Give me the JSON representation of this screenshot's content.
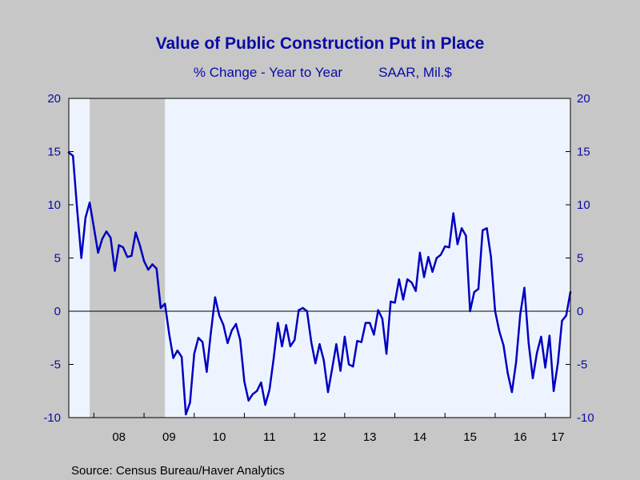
{
  "chart": {
    "title": "Value of Public Construction Put in Place",
    "subtitle_left": "% Change - Year to Year",
    "subtitle_right": "SAAR, Mil.$",
    "source": "Source:  Census Bureau/Haver Analytics"
  },
  "colors": {
    "background": "#C7C7C7",
    "plot_background": "#EEF4FF",
    "recession_shade": "#C8C8C8",
    "line": "#0000C0",
    "text_blue": "#0A0AA6"
  },
  "chart_data": {
    "type": "line",
    "title": "Value of Public Construction Put in Place",
    "subtitle": "% Change - Year to Year    SAAR, Mil.$",
    "xlabel": "",
    "ylabel": "",
    "ylim": [
      -10,
      20
    ],
    "y_ticks": [
      20,
      15,
      10,
      5,
      0,
      -5,
      -10
    ],
    "y_tick_labels": [
      "20",
      "15",
      "10",
      "5",
      "0",
      "-5",
      "-10"
    ],
    "x_tick_labels": [
      "08",
      "09",
      "10",
      "11",
      "12",
      "13",
      "14",
      "15",
      "16",
      "17"
    ],
    "x_range": [
      "2007-07",
      "2017-07"
    ],
    "recession": {
      "start": "2007-12",
      "end": "2009-06"
    },
    "axes": "left and right mirrored",
    "grid": false,
    "zero_line": true,
    "series": [
      {
        "x": [
          "2007-07",
          "2007-08",
          "2007-09",
          "2007-10",
          "2007-11",
          "2007-12",
          "2008-01",
          "2008-02",
          "2008-03",
          "2008-04",
          "2008-05",
          "2008-06",
          "2008-07",
          "2008-08",
          "2008-09",
          "2008-10",
          "2008-11",
          "2008-12",
          "2009-01",
          "2009-02",
          "2009-03",
          "2009-04",
          "2009-05",
          "2009-06",
          "2009-07",
          "2009-08",
          "2009-09",
          "2009-10",
          "2009-11",
          "2009-12",
          "2010-01",
          "2010-02",
          "2010-03",
          "2010-04",
          "2010-05",
          "2010-06",
          "2010-07",
          "2010-08",
          "2010-09",
          "2010-10",
          "2010-11",
          "2010-12",
          "2011-01",
          "2011-02",
          "2011-03",
          "2011-04",
          "2011-05",
          "2011-06",
          "2011-07",
          "2011-08",
          "2011-09",
          "2011-10",
          "2011-11",
          "2011-12",
          "2012-01",
          "2012-02",
          "2012-03",
          "2012-04",
          "2012-05",
          "2012-06",
          "2012-07",
          "2012-08",
          "2012-09",
          "2012-10",
          "2012-11",
          "2012-12",
          "2013-01",
          "2013-02",
          "2013-03",
          "2013-04",
          "2013-05",
          "2013-06",
          "2013-07",
          "2013-08",
          "2013-09",
          "2013-10",
          "2013-11",
          "2013-12",
          "2014-01",
          "2014-02",
          "2014-03",
          "2014-04",
          "2014-05",
          "2014-06",
          "2014-07",
          "2014-08",
          "2014-09",
          "2014-10",
          "2014-11",
          "2014-12",
          "2015-01",
          "2015-02",
          "2015-03",
          "2015-04",
          "2015-05",
          "2015-06",
          "2015-07",
          "2015-08",
          "2015-09",
          "2015-10",
          "2015-11",
          "2015-12",
          "2016-01",
          "2016-02",
          "2016-03",
          "2016-04",
          "2016-05",
          "2016-06",
          "2016-07",
          "2016-08",
          "2016-09",
          "2016-10",
          "2016-11",
          "2016-12",
          "2017-01",
          "2017-02",
          "2017-03",
          "2017-04",
          "2017-05",
          "2017-06",
          "2017-07"
        ],
        "values": [
          14.9,
          14.6,
          9.5,
          5.0,
          8.8,
          10.2,
          7.9,
          5.5,
          6.8,
          7.5,
          6.9,
          3.8,
          6.2,
          6.0,
          5.1,
          5.2,
          7.4,
          6.2,
          4.7,
          3.9,
          4.4,
          4.0,
          0.3,
          0.7,
          -2.1,
          -4.4,
          -3.7,
          -4.3,
          -9.7,
          -8.6,
          -4.0,
          -2.5,
          -2.9,
          -5.7,
          -2.0,
          1.3,
          -0.4,
          -1.3,
          -3.0,
          -1.8,
          -1.2,
          -2.7,
          -6.6,
          -8.4,
          -7.8,
          -7.5,
          -6.7,
          -8.8,
          -7.4,
          -4.5,
          -1.1,
          -3.3,
          -1.3,
          -3.3,
          -2.7,
          0.1,
          0.3,
          0.0,
          -2.9,
          -4.9,
          -3.1,
          -4.6,
          -7.6,
          -5.4,
          -3.1,
          -5.6,
          -2.4,
          -5.0,
          -5.2,
          -2.8,
          -2.9,
          -1.1,
          -1.1,
          -2.2,
          0.1,
          -0.7,
          -4.0,
          0.9,
          0.8,
          3.0,
          1.1,
          3.0,
          2.7,
          1.9,
          5.5,
          3.2,
          5.1,
          3.7,
          5.0,
          5.3,
          6.1,
          6.0,
          9.2,
          6.3,
          7.8,
          7.1,
          0.0,
          1.8,
          2.1,
          7.6,
          7.8,
          5.1,
          0.0,
          -1.9,
          -3.2,
          -5.8,
          -7.6,
          -4.8,
          -0.3,
          2.2,
          -3.0,
          -6.3,
          -3.9,
          -2.4,
          -5.3,
          -2.3,
          -7.5,
          -4.9,
          -0.9,
          -0.4,
          1.8
        ]
      }
    ]
  }
}
